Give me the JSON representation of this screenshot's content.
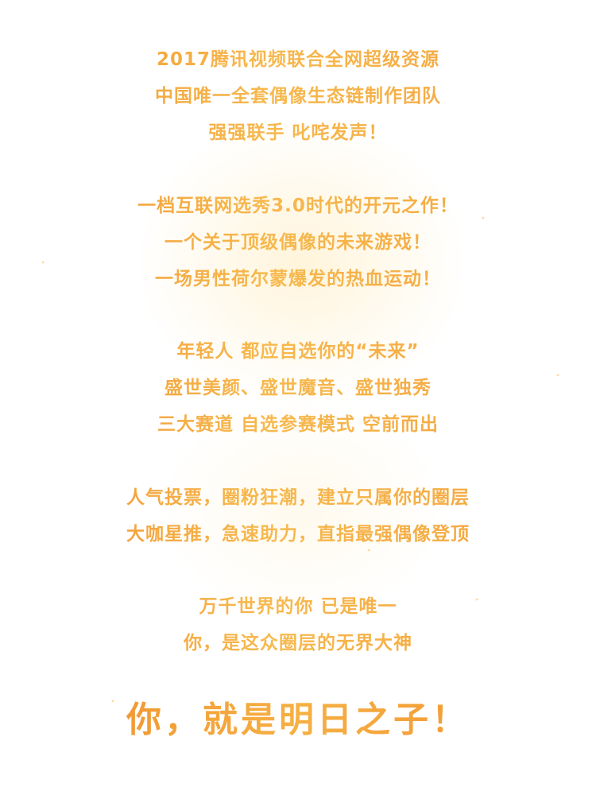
{
  "section1": {
    "line1": "2017腾讯视频联合全网超级资源",
    "line2": "中国唯一全套偶像生态链制作团队",
    "line3": "强强联手 叱咤发声！"
  },
  "section2": {
    "line1": "一档互联网选秀3.0时代的开元之作！",
    "line2": "一个关于顶级偶像的未来游戏！",
    "line3": "一场男性荷尔蒙爆发的热血运动！"
  },
  "section3": {
    "line1": "年轻人 都应自选你的“未来”",
    "line2": "盛世美颜、盛世魔音、盛世独秀",
    "line3": "三大赛道 自选参赛模式 空前而出"
  },
  "section4": {
    "line1": "人气投票，圈粉狂潮，建立只属你的圈层",
    "line2": "大咖星推，急速助力，直指最强偶像登顶"
  },
  "section5": {
    "line1": "万千世界的你 已是唯一",
    "line2": "你，是这众圈层的无界大神"
  },
  "final": {
    "text": "你，就是明日之子！"
  },
  "colors": {
    "text_gradient_start": "#f0922e",
    "text_gradient_mid": "#f7b94e",
    "background": "#ffffff"
  }
}
